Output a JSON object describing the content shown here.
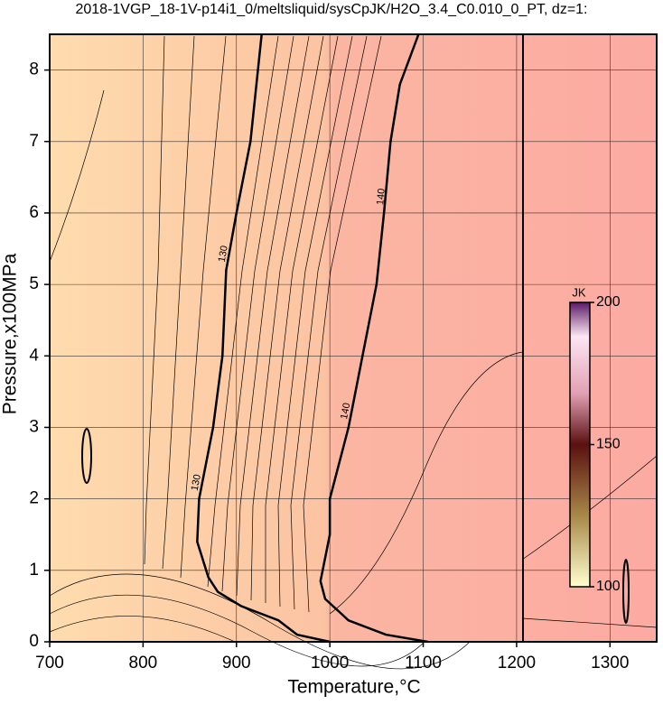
{
  "chart_data": {
    "type": "contour",
    "title": "2018-1VGP_18-1V-p14i1_0/meltsliquid/sysCpJK/H2O_3.4_C0.010_0_PT, dz=1:",
    "x_label": "Temperature,°C",
    "y_label": "Pressure,x100MPa",
    "xlim": [
      700,
      1350
    ],
    "ylim": [
      0,
      8.5
    ],
    "xticks": [
      700,
      800,
      900,
      1000,
      1100,
      1200,
      1300
    ],
    "yticks": [
      0,
      1,
      2,
      3,
      4,
      5,
      6,
      7,
      8
    ],
    "grid": true,
    "contours": [
      {
        "level": 130,
        "x": [
          1000,
          965,
          945,
          905,
          880,
          870,
          858,
          860,
          875,
          885,
          889,
          900,
          915,
          927
        ],
        "y": [
          0,
          0.1,
          0.3,
          0.5,
          0.7,
          0.9,
          1.4,
          2,
          3,
          4,
          5.2,
          6,
          7,
          8.5
        ]
      },
      {
        "level": 140,
        "x": [
          1105,
          1060,
          1020,
          995,
          990,
          1000,
          1000,
          1020,
          1035,
          1050,
          1058,
          1065,
          1075,
          1095
        ],
        "y": [
          0,
          0.1,
          0.3,
          0.6,
          0.85,
          1.5,
          2,
          3,
          4,
          5,
          6,
          7,
          7.8,
          8.5
        ]
      }
    ],
    "colorbar": {
      "label": "JK",
      "lim": [
        100,
        200
      ],
      "ticks": [
        100,
        150,
        200
      ]
    }
  }
}
